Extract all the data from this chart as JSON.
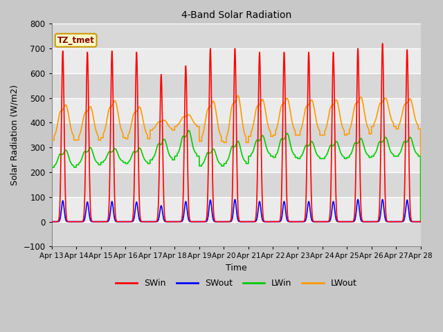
{
  "title": "4-Band Solar Radiation",
  "xlabel": "Time",
  "ylabel": "Solar Radiation (W/m2)",
  "ylim": [
    -100,
    800
  ],
  "xlim": [
    0,
    15
  ],
  "x_tick_labels": [
    "Apr 13",
    "Apr 14",
    "Apr 15",
    "Apr 16",
    "Apr 17",
    "Apr 18",
    "Apr 19",
    "Apr 20",
    "Apr 21",
    "Apr 22",
    "Apr 23",
    "Apr 24",
    "Apr 25",
    "Apr 26",
    "Apr 27",
    "Apr 28"
  ],
  "yticks": [
    -100,
    0,
    100,
    200,
    300,
    400,
    500,
    600,
    700,
    800
  ],
  "legend_labels": [
    "SWin",
    "SWout",
    "LWin",
    "LWout"
  ],
  "legend_colors": [
    "#ff0000",
    "#0000ff",
    "#00cc00",
    "#ff9900"
  ],
  "annotation_text": "TZ_tmet",
  "annotation_bg": "#ffffcc",
  "annotation_border": "#cc9900",
  "swin_color": "#ff0000",
  "swout_color": "#0000ff",
  "lwin_color": "#00cc00",
  "lwout_color": "#ff9900",
  "n_days": 15,
  "swin_peak": [
    690,
    685,
    690,
    685,
    595,
    630,
    700,
    700,
    685,
    685,
    685,
    685,
    700,
    720,
    695
  ],
  "swin_peak_narrow": 0.055,
  "swout_peak": [
    85,
    80,
    82,
    80,
    65,
    82,
    88,
    90,
    82,
    82,
    82,
    82,
    90,
    90,
    88
  ],
  "lwin_night": [
    220,
    230,
    240,
    235,
    250,
    265,
    225,
    235,
    265,
    260,
    255,
    255,
    260,
    265,
    265
  ],
  "lwin_day_bump": [
    50,
    50,
    40,
    45,
    60,
    75,
    50,
    65,
    60,
    70,
    50,
    50,
    55,
    55,
    55
  ],
  "lwout_night": [
    330,
    330,
    340,
    335,
    370,
    385,
    325,
    320,
    345,
    350,
    350,
    350,
    355,
    385,
    375
  ],
  "lwout_day_peak": [
    435,
    430,
    450,
    430,
    400,
    420,
    445,
    460,
    455,
    460,
    455,
    455,
    465,
    470,
    465
  ]
}
